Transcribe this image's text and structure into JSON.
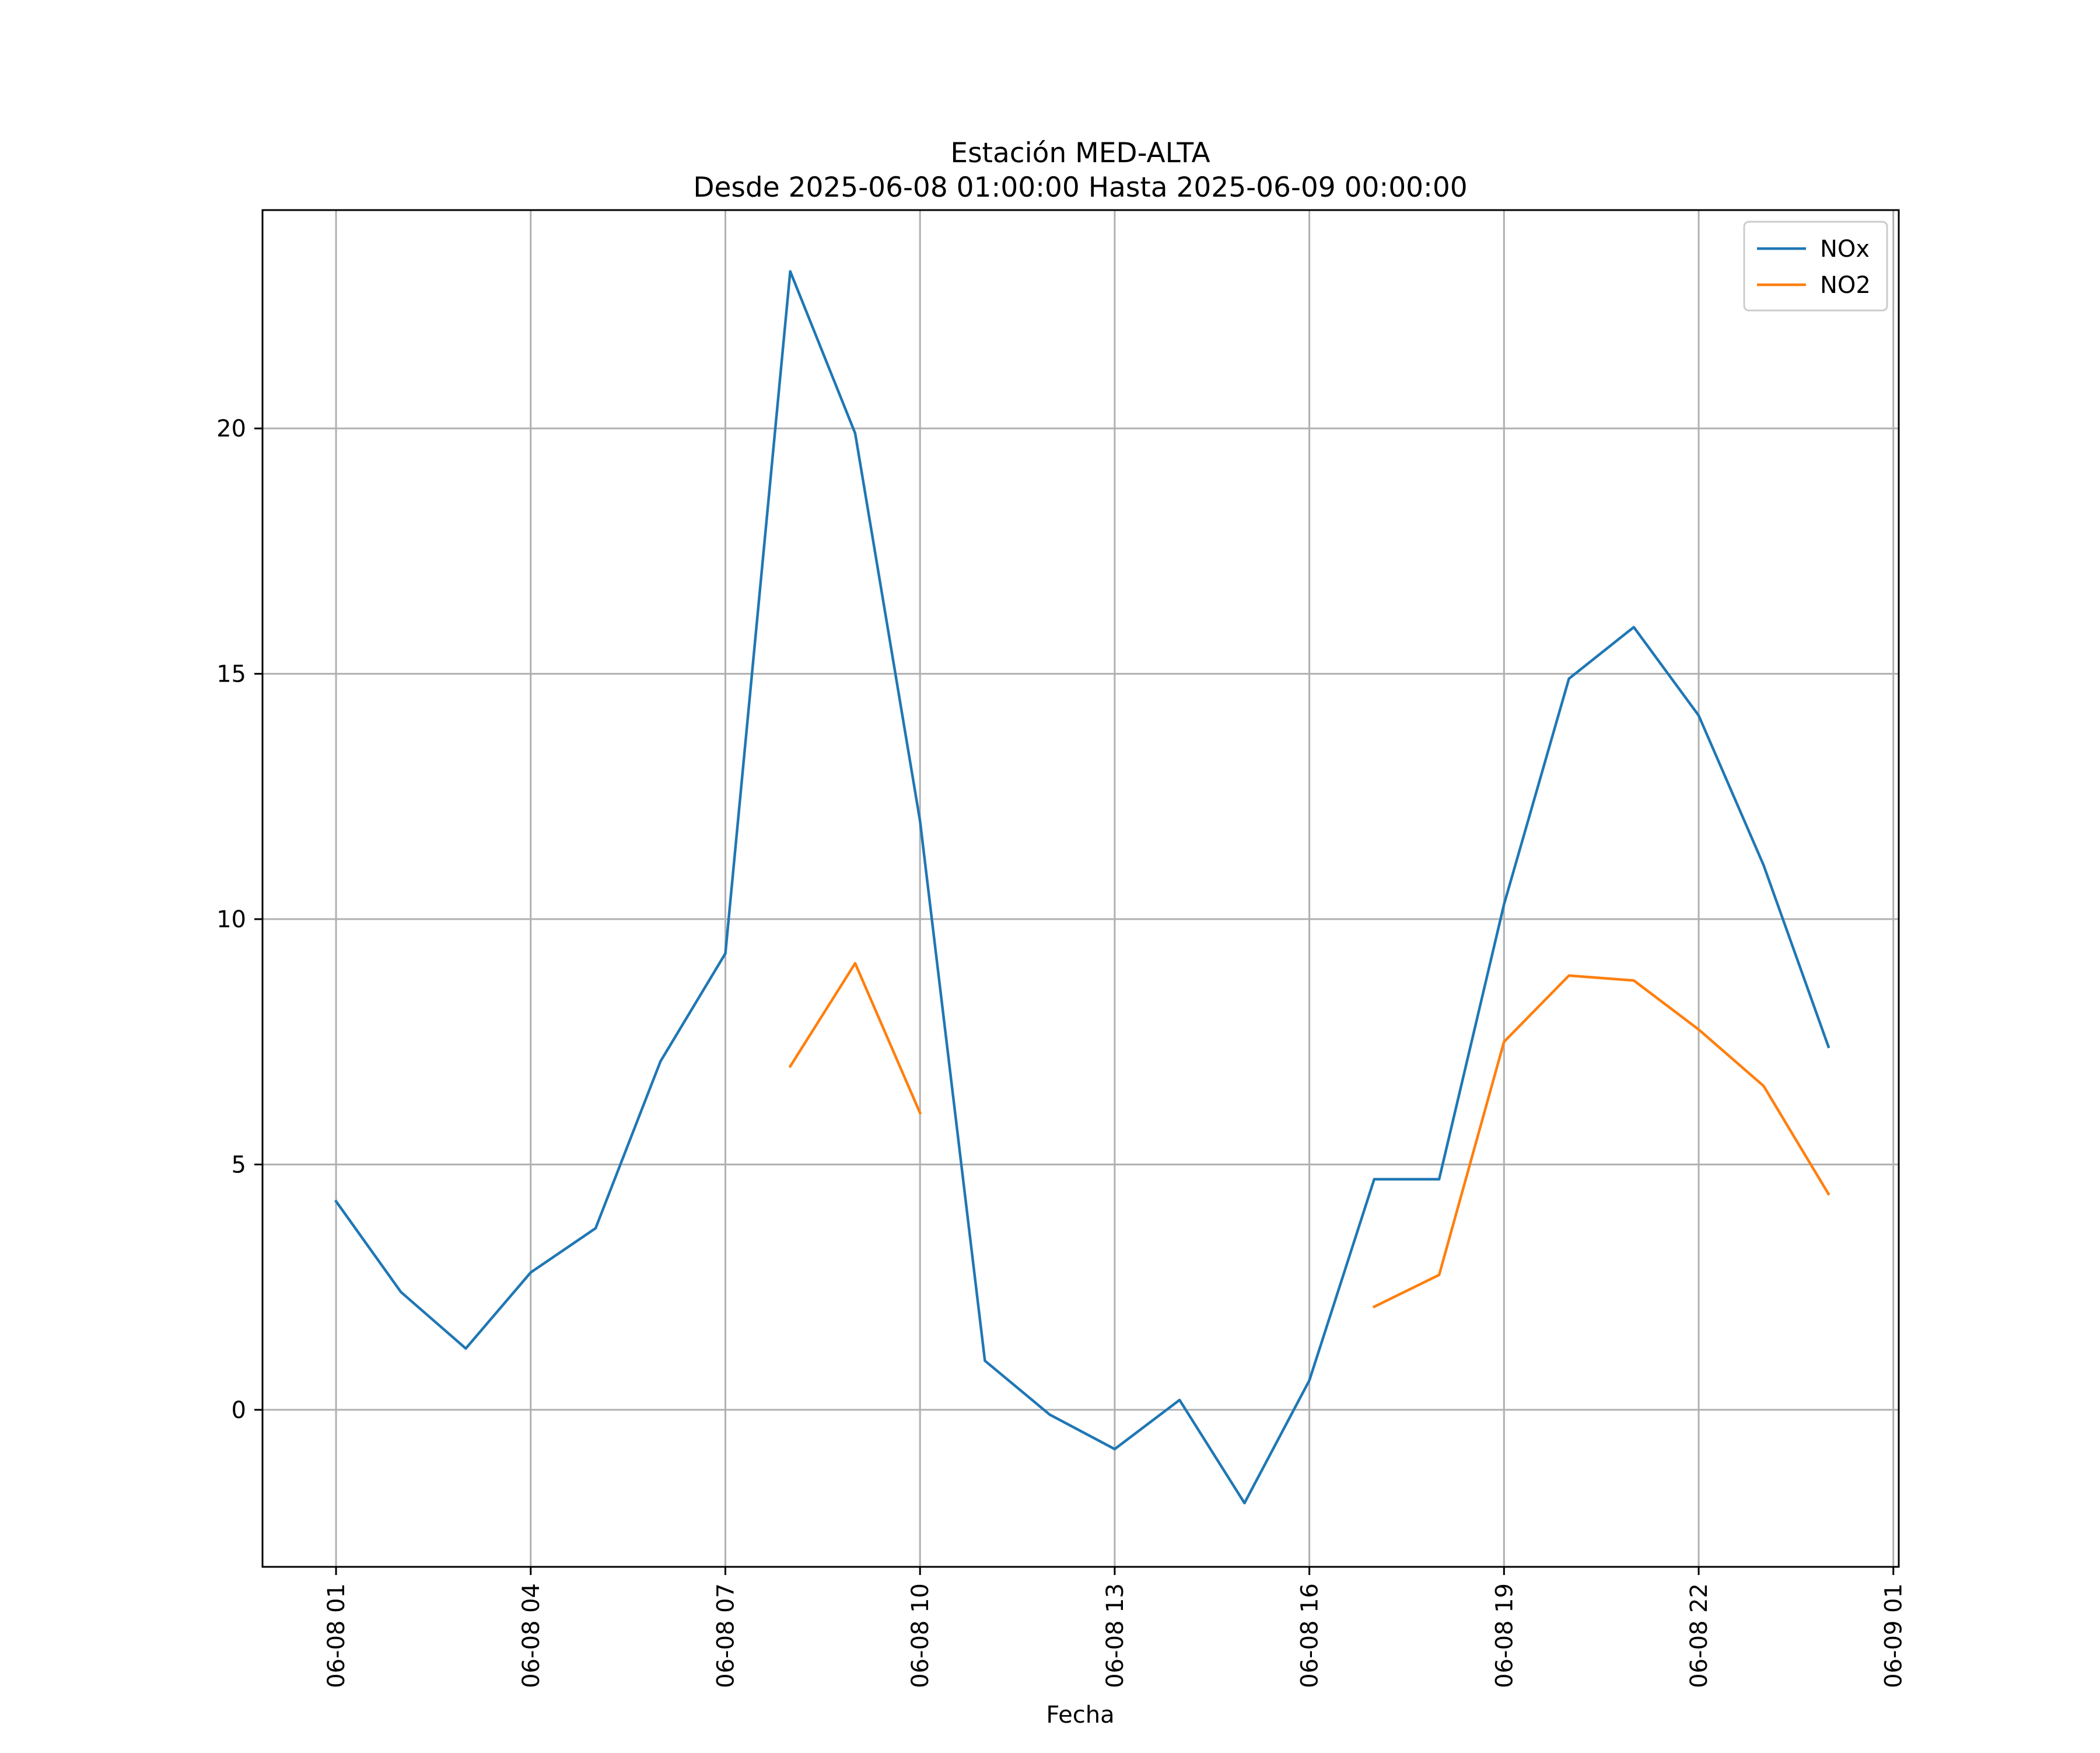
{
  "chart_data": {
    "type": "line",
    "title": "Estación MED-ALTA",
    "subtitle": "Desde 2025-06-08 01:00:00 Hasta 2025-06-09 00:00:00",
    "xlabel": "Fecha",
    "ylabel": "",
    "x": [
      "2025-06-08 01:00",
      "2025-06-08 02:00",
      "2025-06-08 03:00",
      "2025-06-08 04:00",
      "2025-06-08 05:00",
      "2025-06-08 06:00",
      "2025-06-08 07:00",
      "2025-06-08 08:00",
      "2025-06-08 09:00",
      "2025-06-08 10:00",
      "2025-06-08 11:00",
      "2025-06-08 12:00",
      "2025-06-08 13:00",
      "2025-06-08 14:00",
      "2025-06-08 15:00",
      "2025-06-08 16:00",
      "2025-06-08 17:00",
      "2025-06-08 18:00",
      "2025-06-08 19:00",
      "2025-06-08 20:00",
      "2025-06-08 21:00",
      "2025-06-08 22:00",
      "2025-06-08 23:00",
      "2025-06-09 00:00"
    ],
    "series": [
      {
        "name": "NOx",
        "color": "#1f77b4",
        "values": [
          4.25,
          2.4,
          1.25,
          2.8,
          3.7,
          7.1,
          9.3,
          23.2,
          19.9,
          12.0,
          1.0,
          -0.1,
          -0.8,
          0.2,
          -1.9,
          0.6,
          4.7,
          4.7,
          10.3,
          14.9,
          15.95,
          14.15,
          11.1,
          7.4
        ]
      },
      {
        "name": "NO2",
        "color": "#ff7f0e",
        "values": [
          null,
          null,
          null,
          null,
          null,
          null,
          null,
          7.0,
          9.1,
          6.05,
          null,
          null,
          null,
          null,
          null,
          null,
          2.1,
          2.75,
          7.5,
          8.85,
          8.75,
          7.75,
          6.6,
          4.4
        ]
      }
    ],
    "xticks": [
      "2025-06-08 01:00",
      "2025-06-08 04:00",
      "2025-06-08 07:00",
      "2025-06-08 10:00",
      "2025-06-08 13:00",
      "2025-06-08 16:00",
      "2025-06-08 19:00",
      "2025-06-08 22:00",
      "2025-06-09 01:00"
    ],
    "xtick_labels": [
      "06-08 01",
      "06-08 04",
      "06-08 07",
      "06-08 10",
      "06-08 13",
      "06-08 16",
      "06-08 19",
      "06-08 22",
      "06-09 01"
    ],
    "xlim": [
      "2025-06-07 23:52",
      "2025-06-09 01:05"
    ],
    "yticks": [
      0,
      5,
      10,
      15,
      20
    ],
    "ylim": [
      -3.2,
      24.45
    ],
    "grid": true,
    "legend_position": "upper right"
  }
}
